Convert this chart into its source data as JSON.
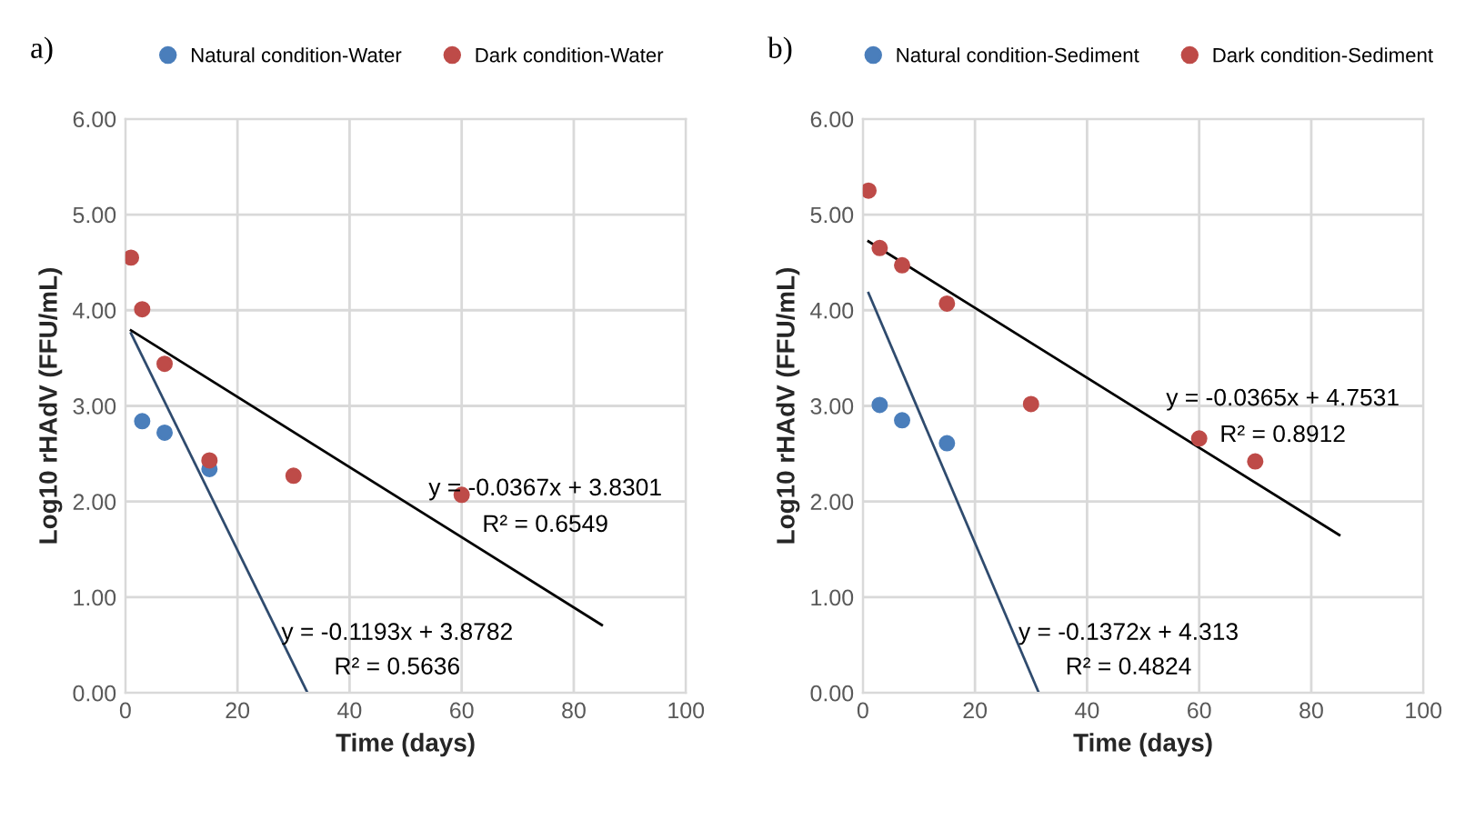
{
  "chart_data": [
    {
      "type": "scatter",
      "title": "a)",
      "xlabel": "Time (days)",
      "ylabel": "Log10 rHAdV (FFU/mL)",
      "xlim": [
        0,
        100
      ],
      "ylim": [
        0,
        6
      ],
      "xticks": [
        0,
        20,
        40,
        60,
        80,
        100
      ],
      "yticks": [
        {
          "value": 0,
          "label": "0.00"
        },
        {
          "value": 1,
          "label": "1.00"
        },
        {
          "value": 2,
          "label": "2.00"
        },
        {
          "value": 3,
          "label": "3.00"
        },
        {
          "value": 4,
          "label": "4.00"
        },
        {
          "value": 5,
          "label": "5.00"
        },
        {
          "value": 6,
          "label": "6.00"
        }
      ],
      "grid": true,
      "legend": "top",
      "marker": "circle",
      "series": [
        {
          "name": "Natural condition-Water",
          "color": "#4a7ebb",
          "x": [
            3,
            7,
            15
          ],
          "values": [
            2.84,
            2.72,
            2.34
          ]
        },
        {
          "name": "Dark condition-Water",
          "color": "#be4b48",
          "x": [
            1,
            3,
            7,
            15,
            30,
            60
          ],
          "values": [
            4.55,
            4.01,
            3.44,
            2.43,
            2.27,
            2.07
          ]
        },
        {
          "type": "line",
          "marker": "none",
          "color": "#2f4b6e",
          "x": [
            1,
            32.5
          ],
          "values": [
            3.76,
            0.0
          ]
        },
        {
          "type": "line",
          "marker": "none",
          "color": "#000000",
          "x": [
            1,
            85
          ],
          "values": [
            3.79,
            0.71
          ]
        }
      ],
      "annotations": [
        "y = -0.0367x + 3.8301",
        "R² = 0.6549",
        "y = -0.1193x + 3.8782",
        "R² = 0.5636"
      ]
    },
    {
      "type": "scatter",
      "title": "b)",
      "xlabel": "Time (days)",
      "ylabel": "Log10 rHAdV (FFU/mL)",
      "xlim": [
        0,
        100
      ],
      "ylim": [
        0,
        6
      ],
      "xticks": [
        0,
        20,
        40,
        60,
        80,
        100
      ],
      "yticks": [
        {
          "value": 0,
          "label": "0.00"
        },
        {
          "value": 1,
          "label": "1.00"
        },
        {
          "value": 2,
          "label": "2.00"
        },
        {
          "value": 3,
          "label": "3.00"
        },
        {
          "value": 4,
          "label": "4.00"
        },
        {
          "value": 5,
          "label": "5.00"
        },
        {
          "value": 6,
          "label": "6.00"
        }
      ],
      "grid": true,
      "legend": "top",
      "marker": "circle",
      "series": [
        {
          "name": "Natural condition-Sediment",
          "color": "#4a7ebb",
          "x": [
            3,
            7,
            15
          ],
          "values": [
            3.01,
            2.85,
            2.61
          ]
        },
        {
          "name": "Dark condition-Sediment",
          "color": "#be4b48",
          "x": [
            1,
            3,
            7,
            15,
            30,
            60,
            70
          ],
          "values": [
            5.25,
            4.65,
            4.47,
            4.07,
            3.02,
            2.66,
            2.42
          ]
        },
        {
          "type": "line",
          "marker": "none",
          "color": "#2f4b6e",
          "x": [
            1,
            31.4
          ],
          "values": [
            4.18,
            0.0
          ]
        },
        {
          "type": "line",
          "marker": "none",
          "color": "#000000",
          "x": [
            1,
            85
          ],
          "values": [
            4.72,
            1.65
          ]
        }
      ],
      "annotations": [
        "y = -0.0365x + 4.7531",
        "R² = 0.8912",
        "y = -0.1372x + 4.313",
        "R² = 0.4824"
      ]
    }
  ]
}
